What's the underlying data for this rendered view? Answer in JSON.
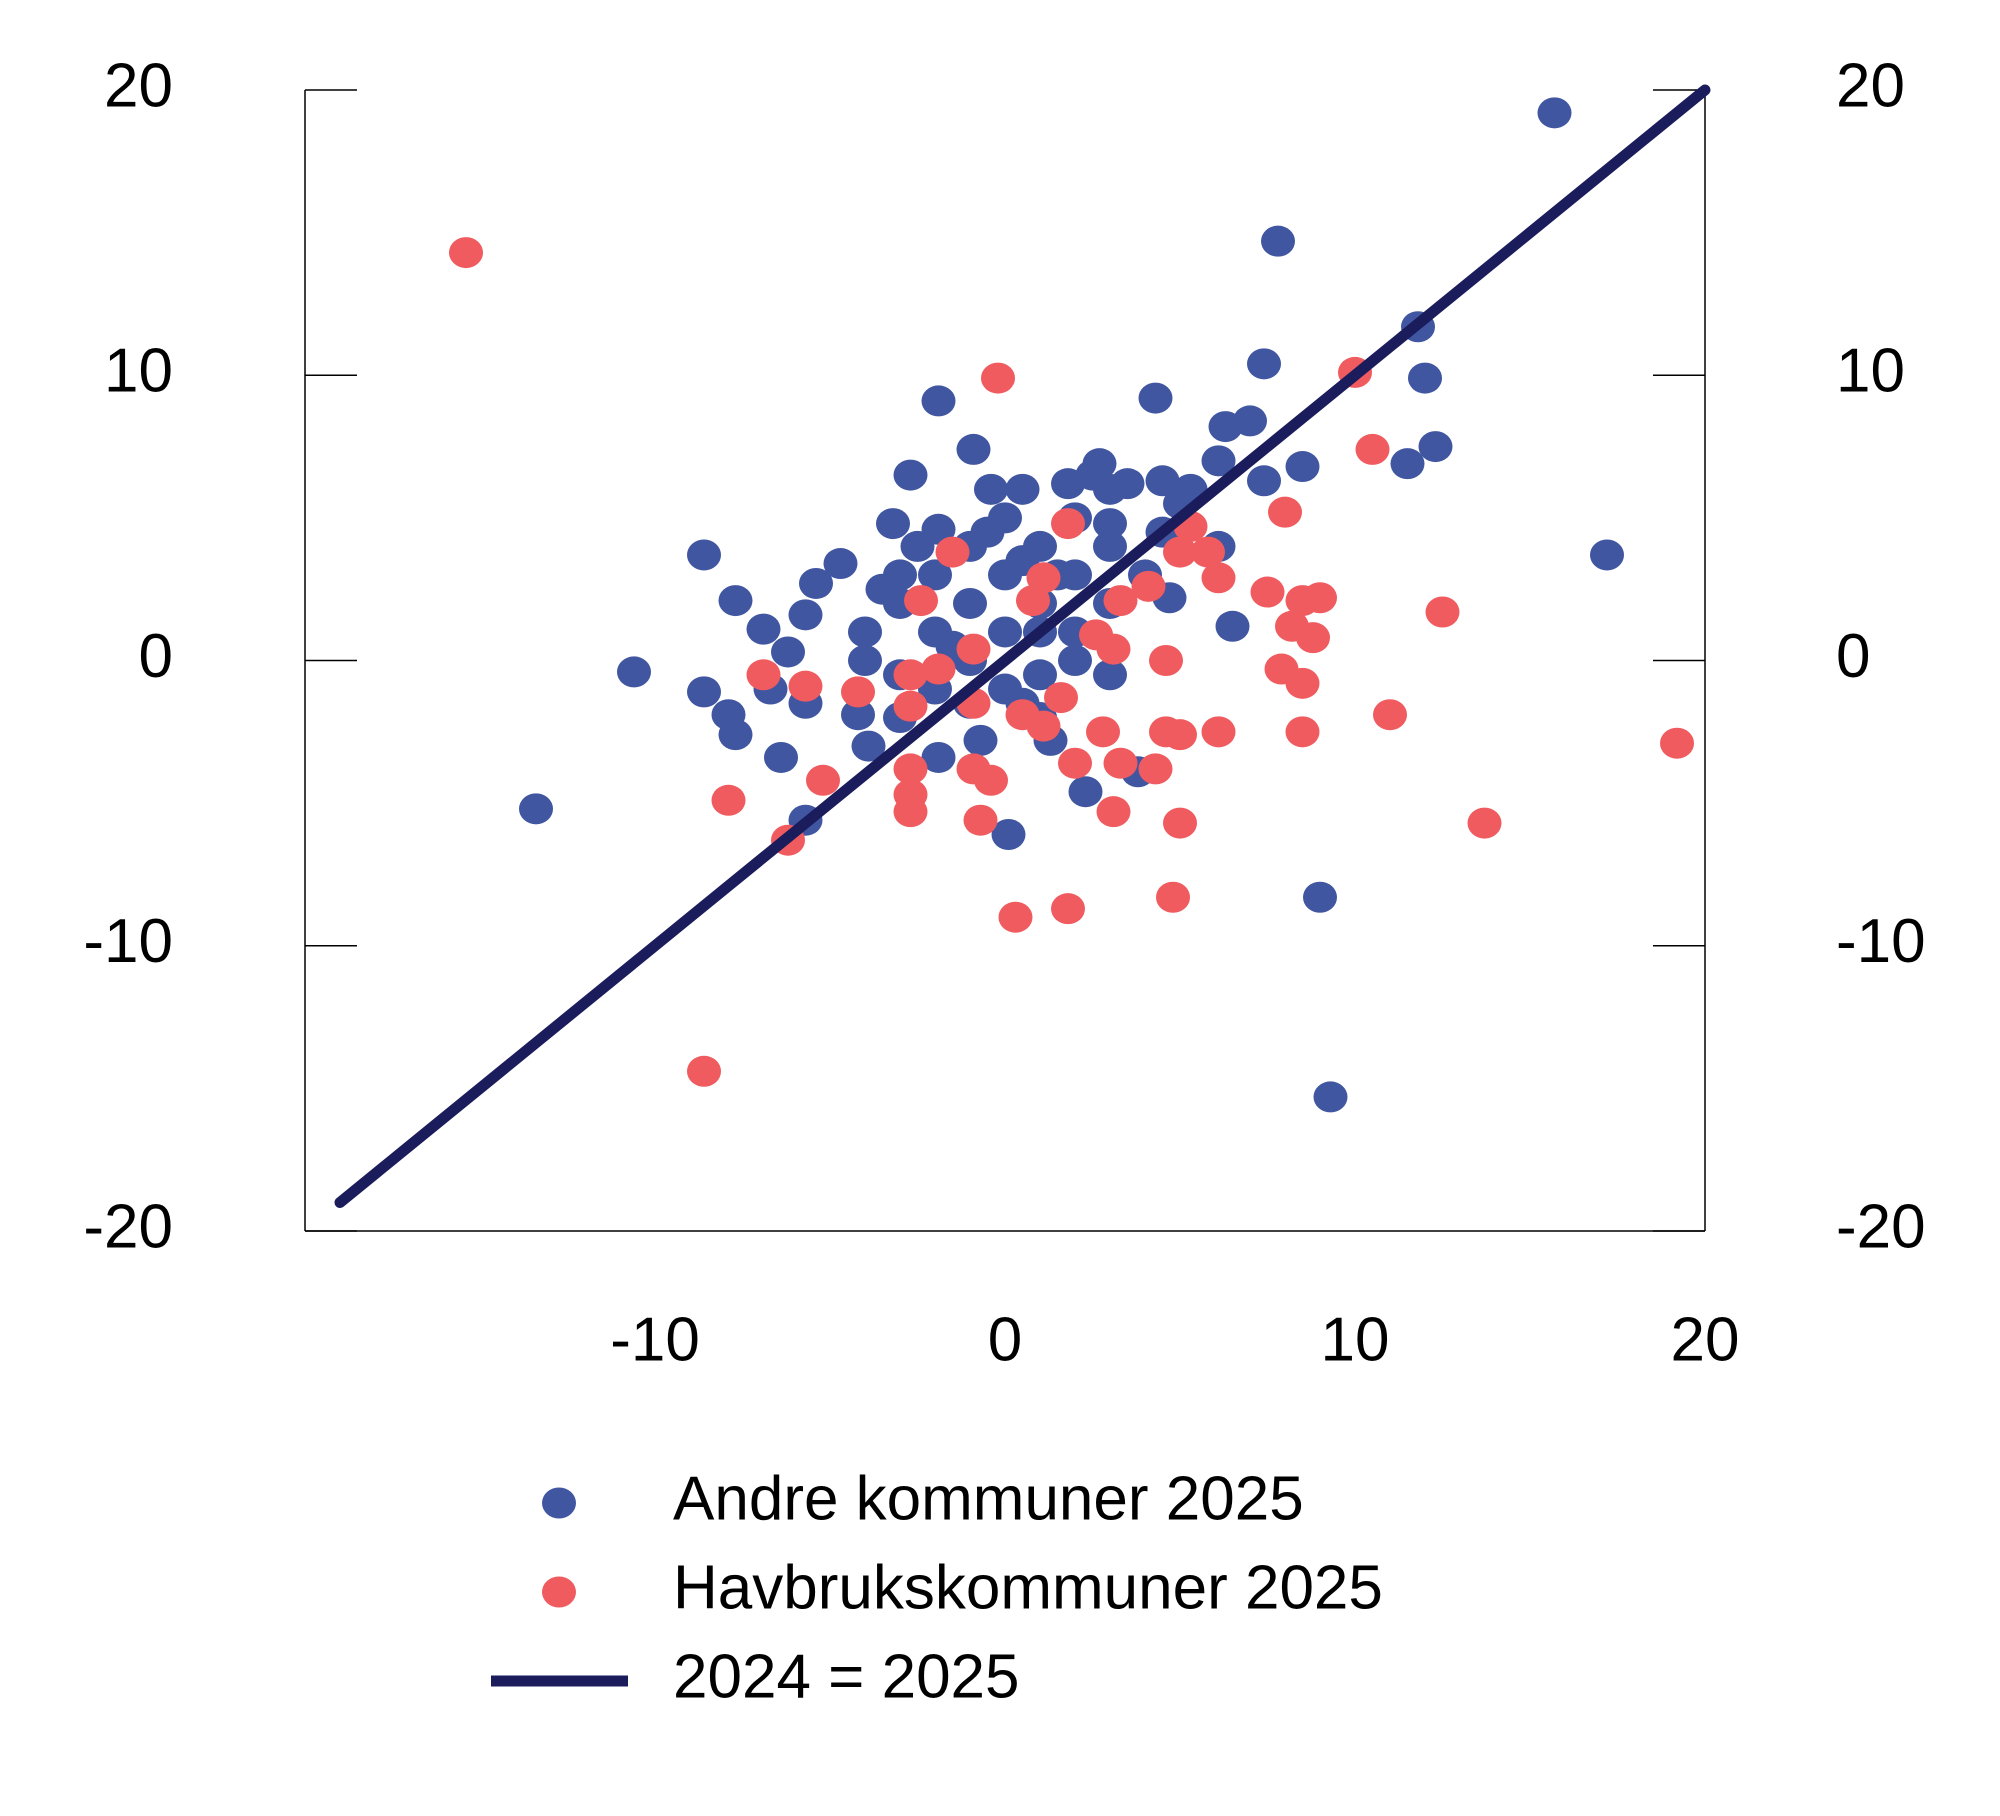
{
  "chart_data": {
    "type": "scatter",
    "xlim": [
      -20,
      20
    ],
    "xticks": [
      -10,
      0,
      10,
      20
    ],
    "ylim": [
      -20,
      20
    ],
    "yticks": [
      -20,
      -10,
      0,
      10,
      20
    ],
    "y2lim": [
      -20,
      20
    ],
    "y2ticks": [
      -20,
      -10,
      0,
      10,
      20
    ],
    "grid": false,
    "legend": "bottom",
    "series": [
      {
        "name": "Andre kommuner 2025",
        "color": "#4156a1",
        "x": [
          15.7,
          7.8,
          11.8,
          7.4,
          12.0,
          4.3,
          -1.9,
          7.0,
          6.3,
          12.3,
          -0.9,
          11.5,
          8.5,
          6.1,
          -2.7,
          2.7,
          7.4,
          4.5,
          -0.4,
          0.5,
          1.8,
          3.5,
          5.3,
          17.2,
          -8.6,
          -3.2,
          -1.9,
          6.5,
          -7.7,
          -10.6,
          -8.6,
          -13.4,
          -7.9,
          -7.7,
          -6.4,
          -5.7,
          0.1,
          2.3,
          9.0,
          9.3,
          -0.7,
          -1.9,
          -3.9,
          1.3,
          3.8,
          3.0,
          4.7,
          6.1,
          3.0,
          -5.4,
          -4.7,
          -5.7,
          -6.9,
          -6.2,
          -6.7,
          -4.2,
          -5.7,
          -3,
          -2,
          -1,
          0,
          1,
          2,
          -4,
          -2,
          0,
          1,
          3,
          -1,
          0,
          2,
          -3,
          -1,
          1,
          -2,
          0,
          2,
          3,
          4,
          -4,
          -3,
          1,
          -1,
          2,
          0.5,
          -0.5,
          1.5,
          -2.5,
          -3.5,
          -1.5,
          0.5,
          1,
          -3,
          5,
          4.5,
          2.5,
          3
        ],
        "values": [
          19.2,
          14.7,
          11.7,
          10.4,
          9.9,
          9.2,
          9.1,
          8.4,
          8.2,
          7.5,
          7.4,
          6.9,
          6.8,
          7.0,
          6.5,
          6.9,
          6.3,
          6.3,
          6.0,
          6.0,
          6.2,
          6.2,
          6.0,
          3.7,
          3.7,
          4.8,
          4.6,
          1.2,
          2.1,
          -0.4,
          -1.1,
          -5.2,
          -1.9,
          -2.6,
          -3.4,
          -5.6,
          -6.1,
          -4.6,
          -8.3,
          -15.3,
          -2.8,
          -3.4,
          -3.0,
          -2.8,
          -3.9,
          -0.5,
          2.2,
          4.0,
          4.8,
          2.7,
          3.4,
          1.6,
          1.1,
          0.3,
          -1.0,
          -1.9,
          -1.5,
          2,
          3,
          4,
          3,
          2,
          3,
          1,
          1,
          1,
          4,
          4,
          2,
          5,
          5,
          3,
          0,
          -0.5,
          -1,
          -1,
          1,
          2,
          3,
          0,
          -0.5,
          1,
          -1.5,
          0,
          3.5,
          4.5,
          3,
          4,
          2.5,
          0.5,
          -1.5,
          -2,
          -2,
          5.5,
          4.5,
          6.5,
          6
        ]
      },
      {
        "name": "Havbrukskommuner 2025",
        "color": "#f05b5f",
        "x": [
          -15.4,
          -0.2,
          10.0,
          10.5,
          8.0,
          1.8,
          -1.5,
          5.3,
          5.8,
          5.0,
          6.1,
          4.1,
          7.5,
          3.3,
          1.1,
          0.8,
          -2.4,
          9.0,
          8.5,
          12.5,
          8.2,
          8.8,
          2.6,
          3.1,
          -0.9,
          4.6,
          7.9,
          8.5,
          -6.9,
          -5.7,
          -4.2,
          -2.7,
          -1.9,
          -0.9,
          -2.7,
          1.6,
          0.5,
          1.1,
          2.8,
          4.6,
          5.0,
          6.1,
          8.5,
          11.0,
          19.2,
          -2.7,
          -0.9,
          -0.4,
          2.0,
          3.3,
          4.3,
          -5.2,
          -2.7,
          -7.9,
          -2.7,
          -0.7,
          3.1,
          5.0,
          13.7,
          -6.2,
          4.8,
          0.3,
          1.8,
          -8.6
        ],
        "values": [
          14.3,
          9.9,
          10.1,
          7.4,
          5.2,
          4.8,
          3.8,
          4.7,
          3.8,
          3.8,
          2.9,
          2.6,
          2.4,
          2.1,
          2.9,
          2.1,
          2.1,
          2.2,
          2.1,
          1.7,
          1.2,
          0.8,
          0.9,
          0.4,
          0.4,
          0.0,
          -0.3,
          -0.8,
          -0.5,
          -0.9,
          -1.1,
          -0.5,
          -0.3,
          -1.5,
          -1.6,
          -1.3,
          -1.9,
          -2.3,
          -2.5,
          -2.5,
          -2.6,
          -2.5,
          -2.5,
          -1.9,
          -2.9,
          -3.8,
          -3.8,
          -4.2,
          -3.6,
          -3.6,
          -3.8,
          -4.2,
          -4.7,
          -4.9,
          -5.3,
          -5.6,
          -5.3,
          -5.7,
          -5.7,
          -6.3,
          -8.3,
          -9.0,
          -8.7,
          -14.4
        ]
      },
      {
        "name": "2024 = 2025",
        "color": "#1b1c5c",
        "type": "line",
        "x": [
          -19,
          20
        ],
        "values": [
          -19,
          20
        ]
      }
    ]
  }
}
